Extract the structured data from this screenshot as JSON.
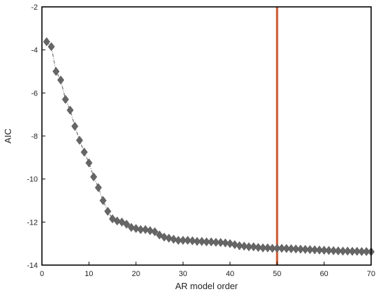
{
  "chart_data": {
    "type": "scatter",
    "title": "",
    "xlabel": "AR model order",
    "ylabel": "AIC",
    "xlim": [
      0,
      70
    ],
    "ylim": [
      -14,
      -2
    ],
    "x_ticks": [
      0,
      10,
      20,
      30,
      40,
      50,
      60,
      70
    ],
    "y_ticks": [
      -2,
      -4,
      -6,
      -8,
      -10,
      -12,
      -14
    ],
    "x_tick_labels": [
      "0",
      "10",
      "20",
      "30",
      "40",
      "50",
      "60",
      "70"
    ],
    "y_tick_labels": [
      "-2",
      "-4",
      "-6",
      "-8",
      "-10",
      "-12",
      "-14"
    ],
    "grid": false,
    "colors": {
      "marker": "#666666",
      "connector": "#555555",
      "vline": "#c9542a",
      "axis": "#000000"
    },
    "vertical_line": {
      "x": 50
    },
    "series": [
      {
        "marker": "diamond",
        "x": [
          1,
          2,
          3,
          4,
          5,
          6,
          7,
          8,
          9,
          10,
          11,
          12,
          13,
          14,
          15,
          16,
          17,
          18,
          19,
          20,
          21,
          22,
          23,
          24,
          25,
          26,
          27,
          28,
          29,
          30,
          31,
          32,
          33,
          34,
          35,
          36,
          37,
          38,
          39,
          40,
          41,
          42,
          43,
          44,
          45,
          46,
          47,
          48,
          49,
          50,
          51,
          52,
          53,
          54,
          55,
          56,
          57,
          58,
          59,
          60,
          61,
          62,
          63,
          64,
          65,
          66,
          67,
          68,
          69,
          70
        ],
        "y": [
          -3.62,
          -3.85,
          -5.0,
          -5.4,
          -6.3,
          -6.8,
          -7.55,
          -8.2,
          -8.75,
          -9.25,
          -9.9,
          -10.4,
          -11.0,
          -11.5,
          -11.85,
          -11.95,
          -12.0,
          -12.1,
          -12.25,
          -12.3,
          -12.35,
          -12.35,
          -12.4,
          -12.45,
          -12.6,
          -12.7,
          -12.75,
          -12.8,
          -12.85,
          -12.85,
          -12.85,
          -12.87,
          -12.9,
          -12.9,
          -12.92,
          -12.92,
          -12.94,
          -12.95,
          -12.97,
          -13.0,
          -13.05,
          -13.1,
          -13.12,
          -13.15,
          -13.15,
          -13.18,
          -13.2,
          -13.2,
          -13.22,
          -13.22,
          -13.22,
          -13.23,
          -13.24,
          -13.25,
          -13.26,
          -13.27,
          -13.28,
          -13.29,
          -13.3,
          -13.31,
          -13.32,
          -13.33,
          -13.34,
          -13.35,
          -13.35,
          -13.36,
          -13.36,
          -13.37,
          -13.37,
          -13.38
        ]
      }
    ]
  }
}
